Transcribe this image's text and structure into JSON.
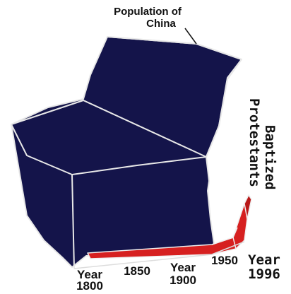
{
  "chart_data": {
    "type": "area",
    "style": "3d-surface",
    "series": [
      {
        "name": "Population of China",
        "label": "Population of\nChina",
        "color": "#14144a",
        "x": [
          1800,
          1850,
          1900,
          1950,
          1996
        ],
        "values": [
          300,
          420,
          400,
          550,
          1230
        ]
      },
      {
        "name": "Baptized Protestants",
        "label": "Baptized Protestants",
        "color": "#d62020",
        "x": [
          1800,
          1850,
          1900,
          1950,
          1996
        ],
        "values": [
          0,
          0.001,
          0.05,
          1,
          20
        ]
      }
    ],
    "ticks": [
      {
        "word": "Year",
        "value": "1800"
      },
      {
        "word": "",
        "value": "1850"
      },
      {
        "word": "Year",
        "value": "1900"
      },
      {
        "word": "",
        "value": "1950"
      },
      {
        "word": "Year",
        "value": "1996"
      }
    ]
  }
}
